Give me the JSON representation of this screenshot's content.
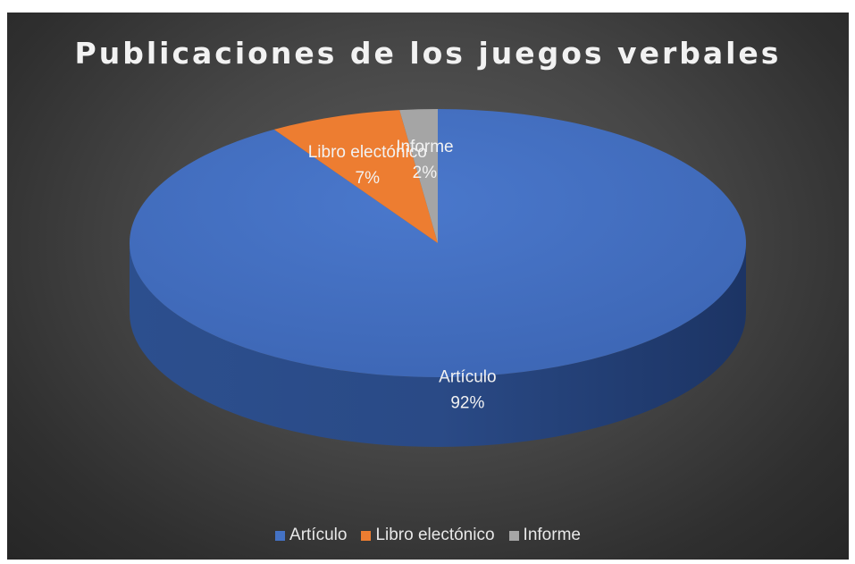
{
  "chart_data": {
    "type": "pie",
    "title": "Publicaciones de los juegos verbales",
    "slices": [
      {
        "name": "Artículo",
        "percent": 92,
        "label": "92%",
        "color": "#4472c4"
      },
      {
        "name": "Libro electónico",
        "percent": 7,
        "label": "7%",
        "color": "#ed7d31"
      },
      {
        "name": "Informe",
        "percent": 2,
        "label": "2%",
        "color": "#a5a5a5"
      }
    ],
    "legend_position": "bottom",
    "style": "3d"
  }
}
